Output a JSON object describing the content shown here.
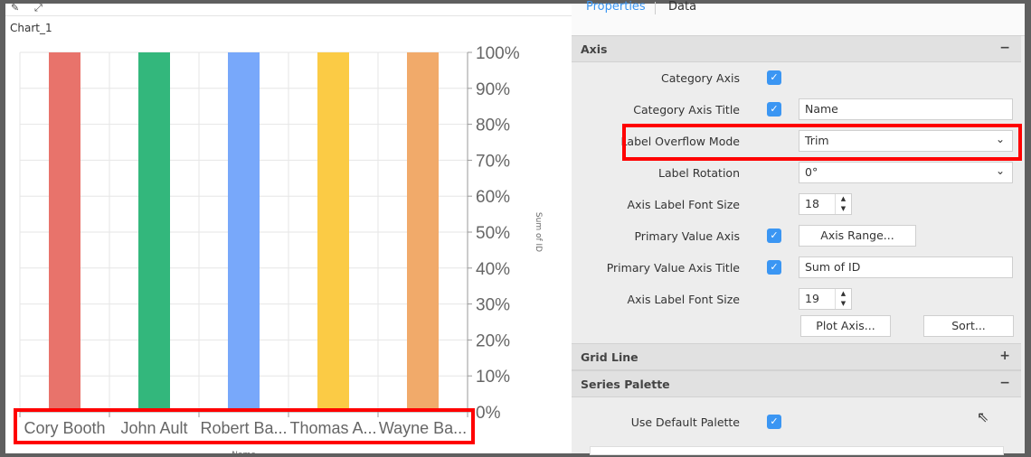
{
  "chart_title": "Chart_1",
  "tabs": [
    {
      "label": "Properties",
      "active": true
    },
    {
      "label": "Data",
      "active": false
    }
  ],
  "chart_data": {
    "type": "bar",
    "stacked": "100%",
    "categories": [
      "Cory Booth",
      "John Ault",
      "Robert Ba...",
      "Thomas A...",
      "Wayne Ba..."
    ],
    "values": [
      100,
      100,
      100,
      100,
      100
    ],
    "colors": [
      "#e8736b",
      "#33b77c",
      "#78a8fa",
      "#fbcb45",
      "#f1aa6a"
    ],
    "xlabel": "Name",
    "ylabel": "Sum of ID",
    "ylim": [
      0,
      100
    ],
    "yticks": [
      "0%",
      "10%",
      "20%",
      "30%",
      "40%",
      "50%",
      "60%",
      "70%",
      "80%",
      "90%",
      "100%"
    ],
    "y_axis_position": "right",
    "grid": true
  },
  "sections": {
    "axis": "Axis",
    "grid": "Grid Line",
    "palette": "Series Palette",
    "minus": "−",
    "plus": "+"
  },
  "axis": {
    "category_axis": "Category Axis",
    "category_axis_title": "Category Axis Title",
    "category_axis_title_value": "Name",
    "label_overflow_mode": "Label Overflow Mode",
    "label_overflow_mode_value": "Trim",
    "label_rotation": "Label Rotation",
    "label_rotation_value": "0°",
    "axis_label_font_size": "Axis Label Font Size",
    "axis_label_font_size_value": "18",
    "primary_value_axis": "Primary Value Axis",
    "axis_range": "Axis Range...",
    "primary_value_axis_title": "Primary Value Axis Title",
    "primary_value_axis_title_value": "Sum of ID",
    "value_axis_label_font_size": "Axis Label Font Size",
    "value_axis_label_font_size_value": "19",
    "plot_axis": "Plot Axis...",
    "sort": "Sort..."
  },
  "palette": {
    "use_default": "Use Default Palette"
  },
  "check": "✓",
  "chevron": "⌄"
}
